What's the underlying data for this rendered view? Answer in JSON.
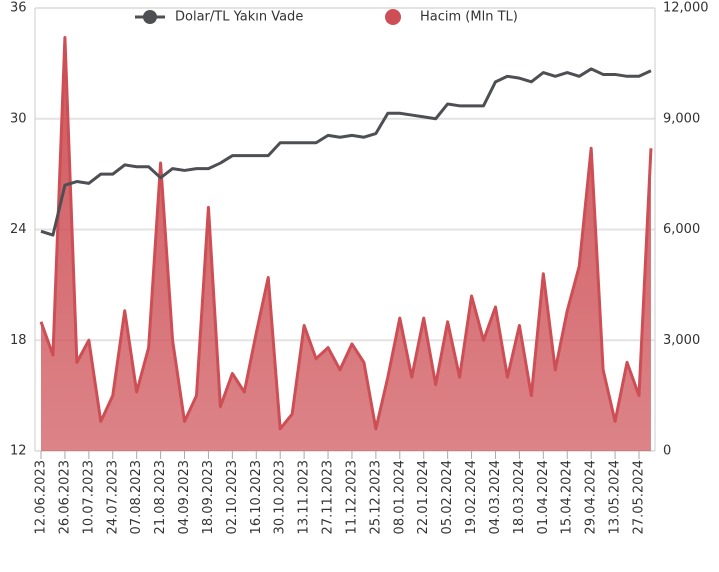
{
  "chart_data": {
    "type": "line",
    "categories": [
      "12.06.2023",
      null,
      "26.06.2023",
      null,
      "10.07.2023",
      null,
      "24.07.2023",
      null,
      "07.08.2023",
      null,
      "21.08.2023",
      null,
      "04.09.2023",
      null,
      "18.09.2023",
      null,
      "02.10.2023",
      null,
      "16.10.2023",
      null,
      "30.10.2023",
      null,
      "13.11.2023",
      null,
      "27.11.2023",
      null,
      "11.12.2023",
      null,
      "25.12.2023",
      null,
      "08.01.2024",
      null,
      "22.01.2024",
      null,
      "05.02.2024",
      null,
      "19.02.2024",
      null,
      "04.03.2024",
      null,
      "18.03.2024",
      null,
      "01.04.2024",
      null,
      "15.04.2024",
      null,
      "29.04.2024",
      null,
      "13.05.2024",
      null,
      "27.05.2024",
      null
    ],
    "series": [
      {
        "name": "Dolar/TL Yakın Vade",
        "type": "line",
        "color": "#4d4f53",
        "values": [
          23.9,
          23.7,
          26.4,
          26.6,
          26.5,
          27.0,
          27.0,
          27.5,
          27.4,
          27.4,
          26.8,
          27.3,
          27.2,
          27.3,
          27.3,
          27.6,
          28.0,
          28.0,
          28.0,
          28.0,
          28.7,
          28.7,
          28.7,
          28.7,
          29.1,
          29.0,
          29.1,
          29.0,
          29.2,
          30.3,
          30.3,
          30.2,
          30.1,
          30.0,
          30.8,
          30.7,
          30.7,
          30.7,
          32.0,
          32.3,
          32.2,
          32.0,
          32.5,
          32.3,
          32.5,
          32.3,
          32.7,
          32.4,
          32.4,
          32.3,
          32.3,
          32.6
        ]
      },
      {
        "name": "Hacim (Mln TL)",
        "type": "area",
        "axis": "y2",
        "color": "#cd4f55",
        "values": [
          3500,
          2600,
          11200,
          2400,
          3000,
          800,
          1500,
          3800,
          1600,
          2800,
          7800,
          3000,
          800,
          1500,
          6600,
          1200,
          2100,
          1600,
          3200,
          4700,
          600,
          1000,
          3400,
          2500,
          2800,
          2200,
          2900,
          2400,
          600,
          2000,
          3600,
          2000,
          3600,
          1800,
          3500,
          2000,
          4200,
          3000,
          3900,
          2000,
          3400,
          1500,
          4800,
          2200,
          3800,
          5000,
          8200,
          2200,
          800,
          2400,
          1500,
          8200
        ]
      }
    ],
    "ylim": [
      12,
      36
    ],
    "yticks": [
      12,
      18,
      24,
      30,
      36
    ],
    "y2lim": [
      0,
      12000
    ],
    "y2ticks": [
      0,
      {
        "value": 3000,
        "label": "3,000"
      },
      {
        "value": 6000,
        "label": "6,000"
      },
      {
        "value": 9000,
        "label": "9,000"
      },
      {
        "value": 12000,
        "label": "12,000"
      }
    ],
    "grid": true,
    "legend": "top"
  }
}
